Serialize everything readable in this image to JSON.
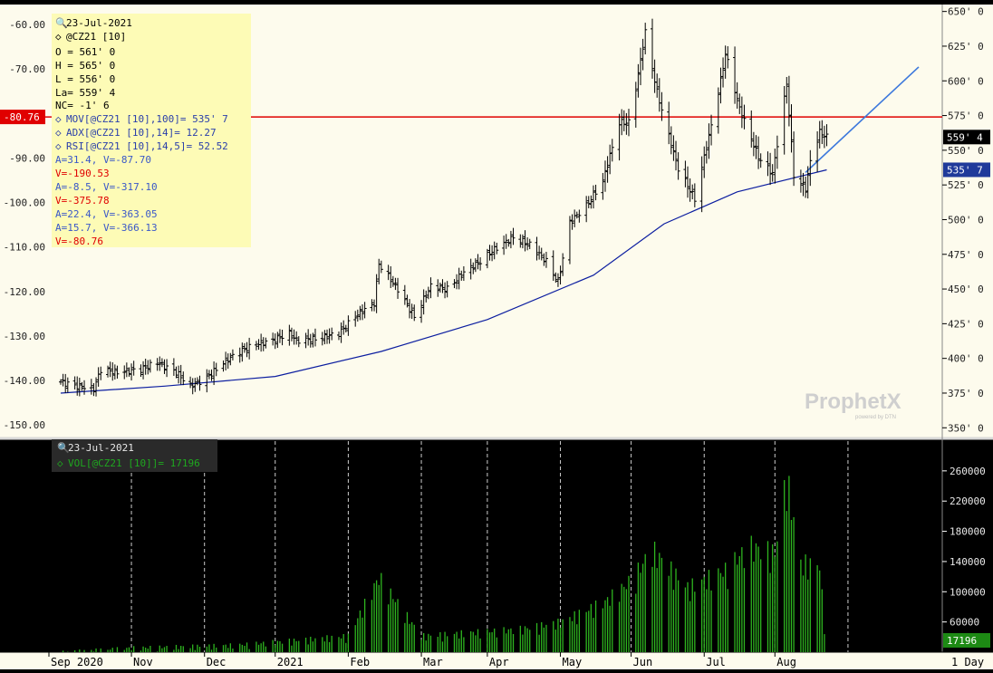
{
  "info_panel": {
    "date": "23-Jul-2021",
    "symbol": "@CZ21 [10]",
    "ohlc": [
      "O = 561' 0",
      "H = 565' 0",
      "L = 556' 0",
      "La= 559' 4",
      "NC= -1' 6"
    ],
    "studies": [
      "MOV[@CZ21 [10],100]= 535' 7",
      "ADX[@CZ21 [10],14]= 12.27",
      "RSI[@CZ21 [10],14,5]= 52.52"
    ],
    "cursor_values": [
      {
        "text": "A=31.4, V=-87.70",
        "color": "#3a58c8"
      },
      {
        "text": "V=-190.53",
        "color": "#e00000"
      },
      {
        "text": "A=-8.5, V=-317.10",
        "color": "#3a58c8"
      },
      {
        "text": "V=-375.78",
        "color": "#e00000"
      },
      {
        "text": "A=22.4, V=-363.05",
        "color": "#3a58c8"
      },
      {
        "text": "A=15.7, V=-366.13",
        "color": "#3a58c8"
      },
      {
        "text": "V=-80.76",
        "color": "#e00000"
      }
    ]
  },
  "volume_panel": {
    "date": "23-Jul-2021",
    "label": "VOL[@CZ21 [10]]= 17196"
  },
  "badges": {
    "hline": "-80.76",
    "last_price": "559' 4",
    "mov": "535' 7",
    "volume": "17196",
    "period": "1 Day"
  },
  "watermark": {
    "main": "ProphetX",
    "sub": "powered by DTN"
  },
  "colors": {
    "bg": "#fdfbed",
    "price": "#000000",
    "mov": "#0c1ea0",
    "hline": "#e00000",
    "trend": "#3c78dc",
    "volume": "#2eb51f",
    "info_blue": "#3a58c8"
  },
  "chart_data": [
    {
      "type": "ohlc",
      "symbol": "@CZ21 [10]",
      "x_tick_labels": [
        "Sep 2020",
        "Nov",
        "Dec",
        "2021",
        "Feb",
        "Mar",
        "Apr",
        "May",
        "Jun",
        "Jul",
        "Aug"
      ],
      "y_right_ticks": [
        "350' 0",
        "375' 0",
        "400' 0",
        "425' 0",
        "450' 0",
        "475' 0",
        "500' 0",
        "525' 0",
        "550' 0",
        "575' 0",
        "600' 0",
        "625' 0",
        "650' 0"
      ],
      "y_left_ticks": [
        "-150.00",
        "-140.00",
        "-130.00",
        "-120.00",
        "-110.00",
        "-100.00",
        "-90.00",
        "-80.00",
        "-70.00",
        "-60.00"
      ],
      "ylim_right": [
        343,
        655
      ],
      "ylim_left": [
        -152.8,
        -55.5
      ],
      "x_months": [
        "2020-09",
        "2020-10",
        "2020-11",
        "2020-12",
        "2021-01",
        "2021-02",
        "2021-03",
        "2021-04",
        "2021-05",
        "2021-06",
        "2021-07",
        "2021-08"
      ],
      "close_path": [
        [
          "2020-09-01",
          383
        ],
        [
          "2020-09-08",
          380
        ],
        [
          "2020-09-15",
          378
        ],
        [
          "2020-09-18",
          392
        ],
        [
          "2020-09-25",
          390
        ],
        [
          "2020-10-05",
          392
        ],
        [
          "2020-10-12",
          397
        ],
        [
          "2020-10-20",
          390
        ],
        [
          "2020-10-26",
          380
        ],
        [
          "2020-11-02",
          386
        ],
        [
          "2020-11-09",
          397
        ],
        [
          "2020-11-16",
          405
        ],
        [
          "2020-11-23",
          410
        ],
        [
          "2020-11-30",
          413
        ],
        [
          "2020-12-07",
          418
        ],
        [
          "2020-12-10",
          413
        ],
        [
          "2020-12-18",
          414
        ],
        [
          "2020-12-28",
          418
        ],
        [
          "2021-01-05",
          432
        ],
        [
          "2021-01-12",
          440
        ],
        [
          "2021-01-14",
          468
        ],
        [
          "2021-01-22",
          450
        ],
        [
          "2021-01-29",
          430
        ],
        [
          "2021-02-05",
          452
        ],
        [
          "2021-02-12",
          450
        ],
        [
          "2021-02-19",
          462
        ],
        [
          "2021-02-26",
          470
        ],
        [
          "2021-03-05",
          480
        ],
        [
          "2021-03-12",
          487
        ],
        [
          "2021-03-19",
          482
        ],
        [
          "2021-03-26",
          470
        ],
        [
          "2021-03-31",
          455
        ],
        [
          "2021-04-05",
          498
        ],
        [
          "2021-04-12",
          510
        ],
        [
          "2021-04-19",
          528
        ],
        [
          "2021-04-26",
          570
        ],
        [
          "2021-04-30",
          570
        ],
        [
          "2021-05-03",
          595
        ],
        [
          "2021-05-07",
          635
        ],
        [
          "2021-05-12",
          592
        ],
        [
          "2021-05-17",
          560
        ],
        [
          "2021-05-21",
          537
        ],
        [
          "2021-05-28",
          515
        ],
        [
          "2021-06-03",
          560
        ],
        [
          "2021-06-08",
          600
        ],
        [
          "2021-06-10",
          620
        ],
        [
          "2021-06-16",
          580
        ],
        [
          "2021-06-24",
          545
        ],
        [
          "2021-06-30",
          533
        ],
        [
          "2021-07-06",
          598
        ],
        [
          "2021-07-09",
          532
        ],
        [
          "2021-07-14",
          522
        ],
        [
          "2021-07-16",
          542
        ],
        [
          "2021-07-20",
          563
        ],
        [
          "2021-07-23",
          559.5
        ]
      ],
      "moving_average_100": [
        [
          "2020-09-01",
          375
        ],
        [
          "2020-10-15",
          380
        ],
        [
          "2020-12-01",
          387
        ],
        [
          "2021-01-15",
          405
        ],
        [
          "2021-03-01",
          428
        ],
        [
          "2021-04-15",
          460
        ],
        [
          "2021-05-15",
          497
        ],
        [
          "2021-06-15",
          520
        ],
        [
          "2021-07-23",
          535.9
        ]
      ],
      "horizontal_line": -80.76,
      "trend_line": [
        [
          "2021-07-14",
          534
        ],
        [
          "2021-08-31",
          610
        ]
      ]
    },
    {
      "type": "bar",
      "series": [
        {
          "name": "VOL[@CZ21 [10]]",
          "last": 17196
        }
      ],
      "y_ticks": [
        "60000",
        "100000",
        "140000",
        "180000",
        "220000",
        "260000"
      ],
      "ylim": [
        20000,
        285000
      ],
      "volume_profile": [
        [
          "2020-09-01",
          22000
        ],
        [
          "2020-10-01",
          28000
        ],
        [
          "2020-11-15",
          32000
        ],
        [
          "2021-01-01",
          45000
        ],
        [
          "2021-01-14",
          130000
        ],
        [
          "2021-02-01",
          45000
        ],
        [
          "2021-03-15",
          55000
        ],
        [
          "2021-04-01",
          65000
        ],
        [
          "2021-04-20",
          95000
        ],
        [
          "2021-05-01",
          125000
        ],
        [
          "2021-05-10",
          170000
        ],
        [
          "2021-05-25",
          115000
        ],
        [
          "2021-06-10",
          140000
        ],
        [
          "2021-06-20",
          175000
        ],
        [
          "2021-07-01",
          165000
        ],
        [
          "2021-07-06",
          275000
        ],
        [
          "2021-07-12",
          150000
        ],
        [
          "2021-07-20",
          148000
        ],
        [
          "2021-07-23",
          17196
        ]
      ]
    }
  ]
}
